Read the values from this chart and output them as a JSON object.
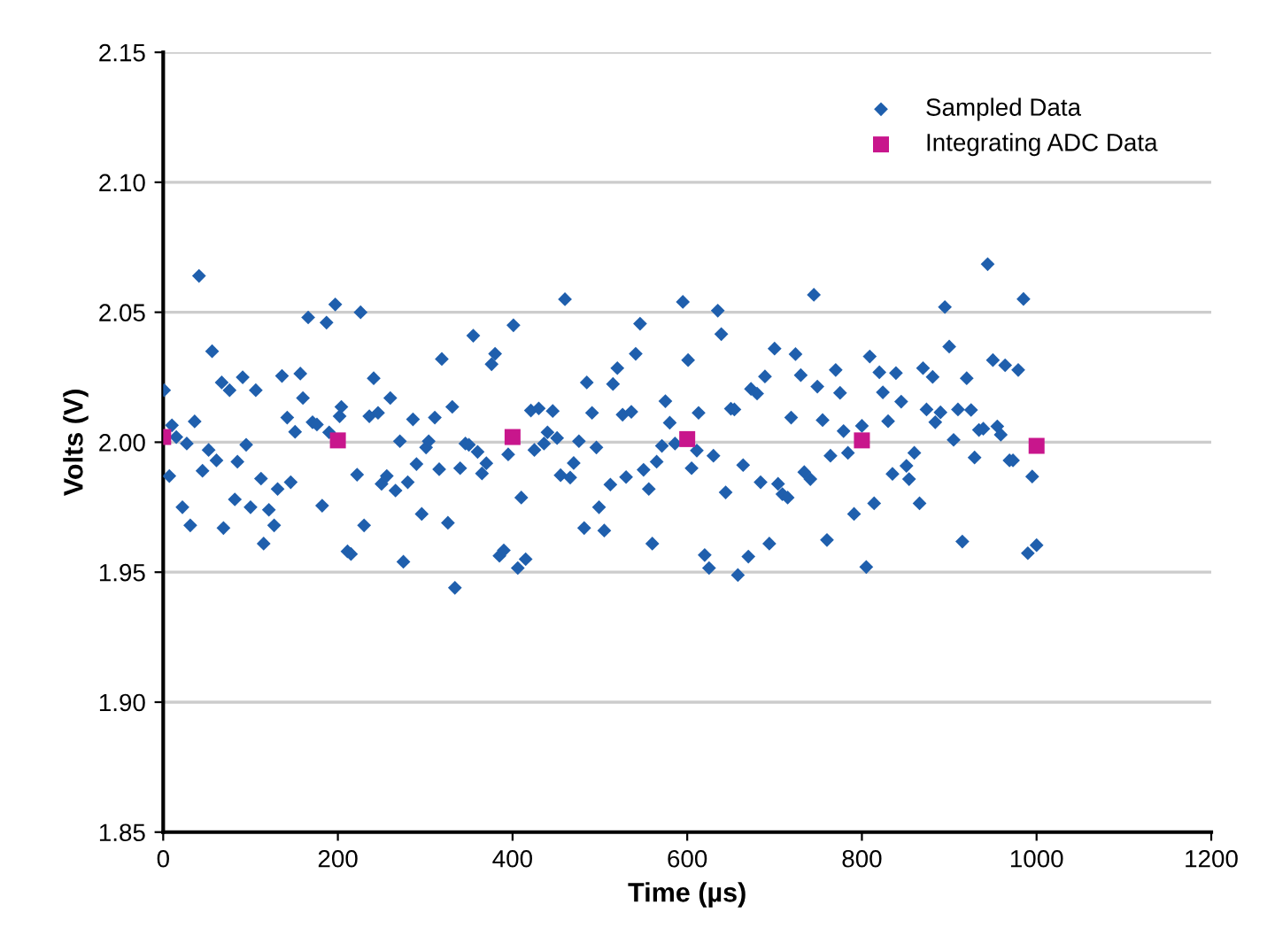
{
  "chart_data": {
    "type": "scatter",
    "xlabel": "Time (µs)",
    "ylabel": "Volts (V)",
    "xlim": [
      0,
      1200
    ],
    "xticks": [
      0,
      200,
      400,
      600,
      800,
      1000,
      1200
    ],
    "ylim": [
      1.85,
      2.15
    ],
    "yticks": [
      {
        "value": 1.85,
        "label": "1.85"
      },
      {
        "value": 1.9,
        "label": "1.90"
      },
      {
        "value": 1.95,
        "label": "1.95"
      },
      {
        "value": 2.0,
        "label": "2.00"
      },
      {
        "value": 2.05,
        "label": "2.05"
      },
      {
        "value": 2.1,
        "label": "2.10"
      },
      {
        "value": 2.15,
        "label": "2.15"
      }
    ],
    "grid": "y",
    "legend": "top right",
    "series": [
      {
        "name": "Sampled Data",
        "color": "#1f5fad",
        "marker": "diamond",
        "x": [
          1,
          7,
          10,
          15,
          22,
          27,
          31,
          36,
          41,
          45,
          52,
          56,
          61,
          67,
          69,
          76,
          82,
          85,
          91,
          95,
          100,
          106,
          112,
          115,
          121,
          127,
          131,
          136,
          142,
          146,
          151,
          157,
          160,
          166,
          171,
          176,
          182,
          187,
          190,
          197,
          202,
          204,
          211,
          215,
          222,
          226,
          230,
          236,
          241,
          246,
          250,
          256,
          260,
          266,
          271,
          275,
          280,
          286,
          290,
          296,
          301,
          304,
          311,
          316,
          319,
          326,
          331,
          334,
          340,
          346,
          350,
          355,
          360,
          365,
          370,
          376,
          380,
          385,
          390,
          395,
          401,
          406,
          410,
          415,
          421,
          425,
          430,
          436,
          440,
          446,
          451,
          455,
          460,
          466,
          470,
          476,
          482,
          485,
          491,
          496,
          499,
          505,
          512,
          515,
          520,
          526,
          530,
          536,
          541,
          546,
          550,
          556,
          560,
          565,
          571,
          575,
          580,
          586,
          595,
          601,
          605,
          611,
          613,
          620,
          625,
          630,
          635,
          639,
          644,
          650,
          654,
          658,
          664,
          670,
          673,
          680,
          684,
          689,
          694,
          700,
          704,
          709,
          715,
          719,
          724,
          730,
          734,
          741,
          745,
          749,
          755,
          760,
          764,
          770,
          775,
          779,
          784,
          791,
          800,
          805,
          809,
          814,
          820,
          824,
          830,
          835,
          839,
          845,
          851,
          854,
          860,
          866,
          870,
          874,
          881,
          884,
          890,
          895,
          900,
          905,
          910,
          915,
          920,
          925,
          929,
          934,
          939,
          944,
          950,
          955,
          959,
          964,
          969,
          973,
          979,
          985,
          990,
          995,
          1000
        ],
        "values": [
          2.02,
          1.987,
          2.0065,
          2.002,
          1.975,
          1.9995,
          1.968,
          2.008,
          2.064,
          1.989,
          1.997,
          2.035,
          1.993,
          2.023,
          1.967,
          2.02,
          1.978,
          1.9925,
          2.025,
          1.999,
          1.975,
          2.02,
          1.986,
          1.961,
          1.974,
          1.968,
          1.982,
          2.0255,
          2.0095,
          1.9846,
          2.004,
          2.0264,
          2.017,
          2.048,
          2.0077,
          2.0068,
          1.9756,
          2.046,
          2.0038,
          2.053,
          2.01,
          2.0136,
          1.958,
          1.957,
          1.9875,
          2.05,
          1.968,
          2.01,
          2.0246,
          2.0113,
          1.984,
          1.987,
          2.017,
          1.9814,
          2.0004,
          1.954,
          1.9846,
          2.0088,
          1.9916,
          1.9724,
          1.998,
          2.0004,
          2.0095,
          1.9896,
          2.032,
          1.969,
          2.0136,
          1.944,
          1.99,
          1.9995,
          1.999,
          2.041,
          1.9963,
          1.988,
          1.9919,
          2.03,
          2.034,
          1.9563,
          1.9584,
          1.9953,
          2.045,
          1.9516,
          1.9787,
          1.955,
          2.0122,
          1.997,
          2.013,
          1.9995,
          2.0038,
          2.012,
          2.0016,
          1.9873,
          2.055,
          1.9864,
          1.992,
          2.0004,
          1.967,
          2.023,
          2.0113,
          1.998,
          1.975,
          1.966,
          1.9837,
          2.0224,
          2.0285,
          2.0106,
          1.9866,
          2.0117,
          2.034,
          2.0456,
          1.9894,
          1.982,
          1.961,
          1.9925,
          1.9986,
          2.0158,
          2.0075,
          1.9995,
          2.054,
          2.0316,
          1.99,
          1.9968,
          2.0113,
          1.9566,
          1.9516,
          1.9948,
          2.0506,
          2.0416,
          1.9807,
          2.0129,
          2.0126,
          1.9489,
          1.9912,
          1.956,
          2.0205,
          2.0187,
          1.9846,
          2.0253,
          1.961,
          2.036,
          1.984,
          1.98,
          1.9787,
          2.0095,
          2.0339,
          2.0258,
          1.9885,
          1.9858,
          2.0567,
          2.0214,
          2.0085,
          1.9624,
          1.9948,
          2.0278,
          2.019,
          2.0043,
          1.9959,
          1.9724,
          2.0063,
          1.952,
          2.033,
          1.9765,
          2.0269,
          2.0192,
          2.0081,
          1.9878,
          2.0266,
          2.0156,
          1.9909,
          1.9858,
          1.9959,
          1.9765,
          2.0285,
          2.0126,
          2.0251,
          2.0077,
          2.0115,
          2.052,
          2.0368,
          2.0009,
          2.0126,
          1.9618,
          2.0246,
          2.0124,
          1.9941,
          2.0047,
          2.0052,
          2.0685,
          2.0316,
          2.0061,
          2.0029,
          2.0296,
          1.993,
          1.993,
          2.0278,
          2.0551,
          1.9573,
          1.9868,
          1.9604
        ]
      },
      {
        "name": "Integrating ADC Data",
        "color": "#c8168c",
        "marker": "square",
        "x": [
          0,
          200,
          400,
          600,
          800,
          1000
        ],
        "values": [
          2.002,
          2.0007,
          2.002,
          2.0012,
          2.0007,
          1.9986
        ]
      }
    ]
  }
}
